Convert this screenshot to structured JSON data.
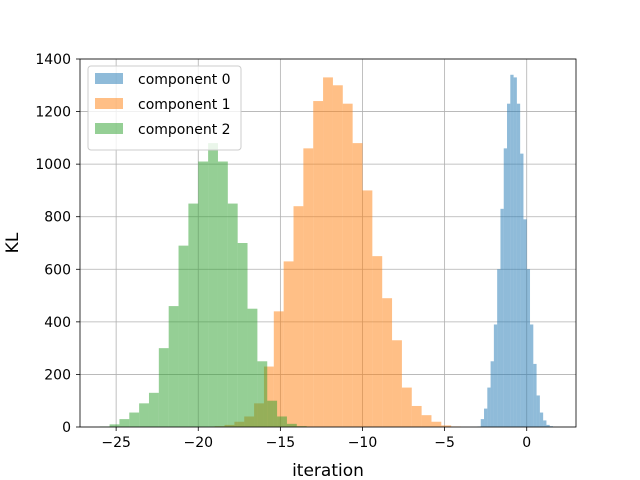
{
  "chart_data": {
    "type": "histogram",
    "title": "",
    "xlabel": "iteration",
    "ylabel": "KL",
    "xlim": [
      -27.2,
      3.0
    ],
    "ylim": [
      0,
      1400
    ],
    "xticks": [
      -25,
      -20,
      -15,
      -10,
      -5,
      0
    ],
    "xtick_labels": [
      "−25",
      "−20",
      "−15",
      "−10",
      "−5",
      "0"
    ],
    "yticks": [
      0,
      200,
      400,
      600,
      800,
      1000,
      1200,
      1400
    ],
    "ytick_labels": [
      "0",
      "200",
      "400",
      "600",
      "800",
      "1000",
      "1200",
      "1400"
    ],
    "grid": true,
    "legend_position": "top-left",
    "series": [
      {
        "name": "component 0",
        "color": "#1f77b4",
        "bin_start": -3.0,
        "bin_width": 0.2,
        "counts": [
          2,
          30,
          70,
          150,
          250,
          390,
          600,
          830,
          1060,
          1230,
          1340,
          1330,
          1230,
          1040,
          790,
          600,
          390,
          240,
          120,
          55,
          25,
          8,
          3
        ]
      },
      {
        "name": "component 1",
        "color": "#ff7f0e",
        "bin_start": -19.0,
        "bin_width": 0.6,
        "counts": [
          3,
          8,
          20,
          40,
          90,
          230,
          440,
          630,
          840,
          1060,
          1240,
          1330,
          1300,
          1230,
          1080,
          900,
          650,
          490,
          330,
          150,
          80,
          45,
          20,
          6,
          2
        ]
      },
      {
        "name": "component 2",
        "color": "#2ca02c",
        "bin_start": -26.0,
        "bin_width": 0.6,
        "counts": [
          2,
          10,
          30,
          55,
          90,
          130,
          300,
          460,
          690,
          850,
          1010,
          1080,
          1010,
          850,
          700,
          450,
          250,
          100,
          40,
          12,
          3
        ]
      }
    ]
  }
}
